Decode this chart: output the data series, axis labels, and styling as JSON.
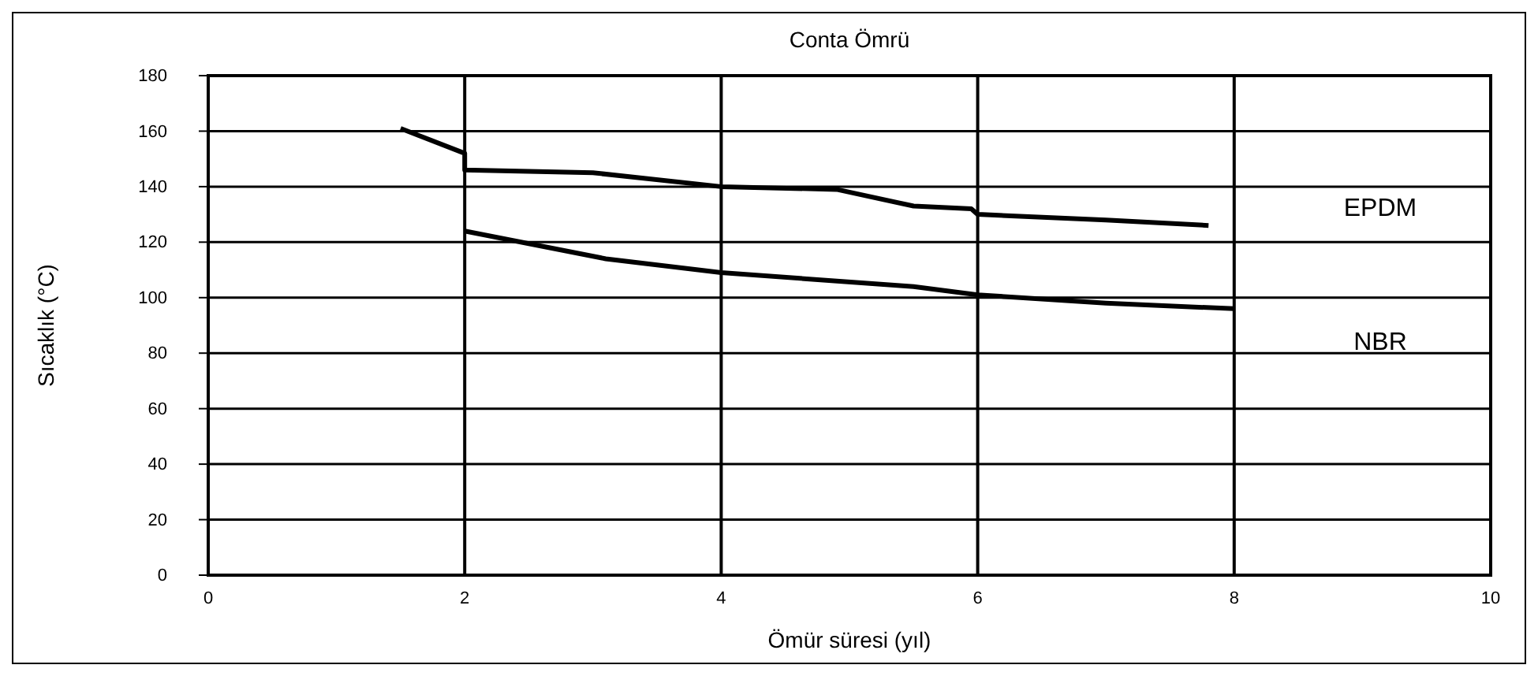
{
  "chart_data": {
    "type": "line",
    "title": "Conta Ömrü",
    "xlabel": "Ömür süresi (yıl)",
    "ylabel": "Sıcaklık (°C)",
    "xlim": [
      0,
      10
    ],
    "xticks": [
      0,
      2,
      4,
      6,
      8,
      10
    ],
    "ylim": [
      0,
      180
    ],
    "yticks": [
      0,
      20,
      40,
      60,
      80,
      100,
      120,
      140,
      160,
      180
    ],
    "grid": true,
    "line_style": "solid",
    "marker": "none",
    "series": [
      {
        "name": "EPDM",
        "color": "#000000",
        "x": [
          1.5,
          2,
          2,
          3,
          4,
          4.9,
          5.5,
          5.95,
          6,
          7,
          7.8
        ],
        "values": [
          161,
          152,
          146,
          145,
          140,
          139,
          133,
          132,
          130,
          128,
          126
        ]
      },
      {
        "name": "NBR",
        "color": "#000000",
        "x": [
          2,
          3.1,
          4,
          5.5,
          6,
          7,
          8
        ],
        "values": [
          124,
          114,
          109,
          104,
          101,
          98,
          96
        ]
      }
    ]
  }
}
